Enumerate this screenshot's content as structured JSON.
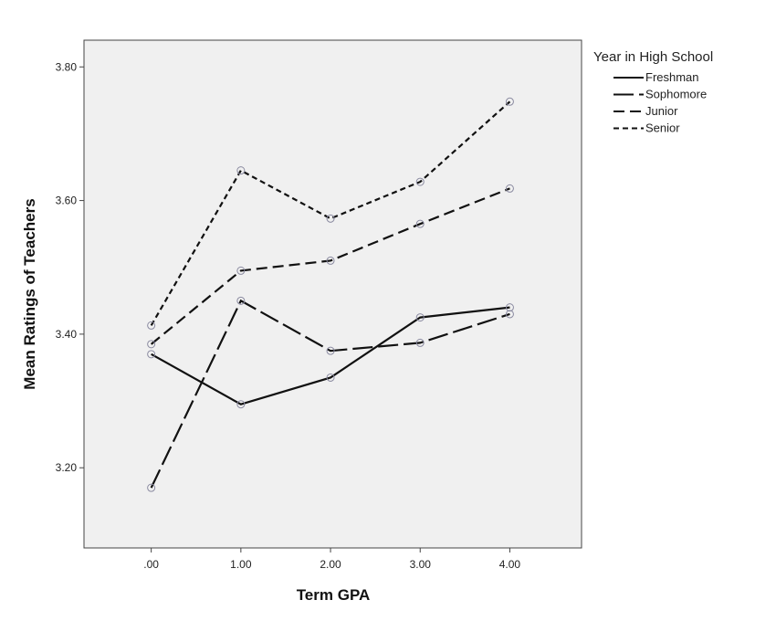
{
  "chart_data": {
    "type": "line",
    "xlabel": "Term GPA",
    "ylabel": "Mean Ratings of Teachers",
    "x": [
      0,
      1,
      2,
      3,
      4
    ],
    "x_tick_labels": [
      ".00",
      "1.00",
      "2.00",
      "3.00",
      "4.00"
    ],
    "y_ticks": [
      3.2,
      3.4,
      3.6,
      3.8
    ],
    "y_tick_labels": [
      "3.20",
      "3.40",
      "3.60",
      "3.80"
    ],
    "xlim": [
      -0.75,
      4.8
    ],
    "ylim": [
      3.08,
      3.84
    ],
    "grid": false,
    "legend_title": "Year in High School",
    "legend_position": "right",
    "plot_background": "#f0f0f0",
    "series": [
      {
        "name": "Freshman",
        "dash": "solid",
        "values": [
          3.37,
          3.295,
          3.335,
          3.425,
          3.44
        ]
      },
      {
        "name": "Sophomore",
        "dash": "long-dash",
        "values": [
          3.17,
          3.45,
          3.375,
          3.387,
          3.43
        ]
      },
      {
        "name": "Junior",
        "dash": "dash",
        "values": [
          3.385,
          3.495,
          3.51,
          3.565,
          3.618
        ]
      },
      {
        "name": "Senior",
        "dash": "short-dash",
        "values": [
          3.413,
          3.645,
          3.573,
          3.628,
          3.748
        ]
      }
    ]
  }
}
